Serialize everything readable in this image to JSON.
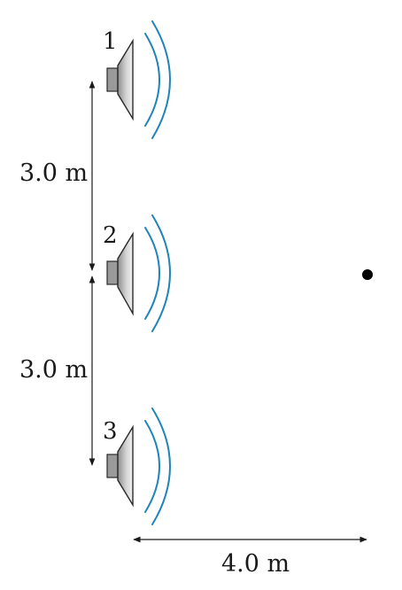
{
  "speakers": [
    {
      "label": "1"
    },
    {
      "label": "2"
    },
    {
      "label": "3"
    }
  ],
  "dimensions": {
    "spacing_1_2": "3.0 m",
    "spacing_2_3": "3.0 m",
    "distance_to_point": "4.0 m"
  },
  "colors": {
    "sound_wave": "#1f84b8",
    "speaker_body": "#9a9a9a",
    "outline": "#2a2a2a",
    "observer_point": "#000000"
  }
}
